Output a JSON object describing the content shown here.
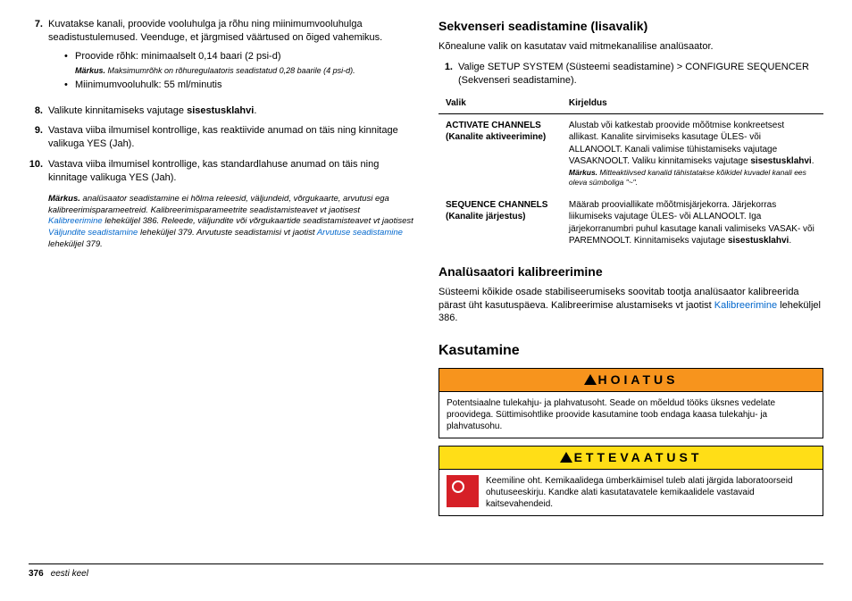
{
  "left": {
    "items": [
      {
        "n": "7.",
        "text": "Kuvatakse kanali, proovide vooluhulga ja rõhu ning miinimumvooluhulga seadistustulemused. Veenduge, et järgmised väärtused on õiged vahemikus."
      },
      {
        "n": "8.",
        "text_pre": "Valikute kinnitamiseks vajutage ",
        "bold": "sisestusklahvi",
        "text_post": "."
      },
      {
        "n": "9.",
        "text": "Vastava viiba ilmumisel kontrollige, kas reaktiivide anumad on täis ning kinnitage valikuga YES (Jah)."
      },
      {
        "n": "10.",
        "text": "Vastava viiba ilmumisel kontrollige, kas standardlahuse anumad on täis ning kinnitage valikuga YES (Jah)."
      }
    ],
    "bullet1": "Proovide rõhk: minimaalselt 0,14 baari (2 psi-d)",
    "bullet1_note_label": "Märkus.",
    "bullet1_note": " Maksimumrõhk on rõhuregulaatoris seadistatud 0,28 baarile (4 psi-d).",
    "bullet2": "Miinimumvooluhulk: 55 ml/minutis",
    "note_label": "Märkus.",
    "note_body_1": " analüsaator seadistamine ei hõlma releesid, väljundeid, võrgukaarte, arvutusi ega kalibreerimisparameetreid. Kalibreerimisparameetrite seadistamisteavet vt jaotisest ",
    "note_link1": "Kalibreerimine",
    "note_body_2": " leheküljel 386. Releede, väljundite või võrgukaartide seadistamisteavet vt jaotisest ",
    "note_link2": "Väljundite seadistamine",
    "note_body_3": " leheküljel 379. Arvutuste seadistamisi vt jaotist ",
    "note_link3": "Arvutuse seadistamine",
    "note_body_4": " leheküljel 379."
  },
  "right": {
    "h_seq": "Sekvenseri seadistamine (lisavalik)",
    "p_seq": "Kõnealune valik on kasutatav vaid mitmekanalilise analüsaator.",
    "step1_n": "1.",
    "step1": "Valige SETUP SYSTEM (Süsteemi seadistamine) > CONFIGURE SEQUENCER (Sekvenseri seadistamine).",
    "th1": "Valik",
    "th2": "Kirjeldus",
    "r1k": "ACTIVATE CHANNELS (Kanalite aktiveerimine)",
    "r1v_1": "Alustab või katkestab proovide mõõtmise konkreetsest allikast. Kanalite sirvimiseks kasutage ÜLES- või ALLANOOLT. Kanali valimise tühistamiseks vajutage VASAKNOOLT. Valiku kinnitamiseks vajutage ",
    "r1v_bold": "sisestusklahvi",
    "r1v_2": ".",
    "r1note_label": "Märkus.",
    "r1note": " Mitteaktiivsed kanalid tähistatakse kõikidel kuvadel kanali ees oleva sümboliga \"~\".",
    "r2k": "SEQUENCE CHANNELS (Kanalite järjestus)",
    "r2v_1": "Määrab prooviallikate mõõtmisjärjekorra. Järjekorras liikumiseks vajutage ÜLES- või ALLANOOLT. Iga järjekorranumbri puhul kasutage kanali valimiseks VASAK- või PAREMNOOLT. Kinnitamiseks vajutage ",
    "r2v_bold": "sisestusklahvi",
    "r2v_2": ".",
    "h_cal": "Analüsaatori kalibreerimine",
    "p_cal_1": "Süsteemi kõikide osade stabiliseerumiseks soovitab tootja analüsaator kalibreerida pärast üht kasutuspäeva. Kalibreerimise alustamiseks vt jaotist ",
    "p_cal_link": "Kalibreerimine",
    "p_cal_2": " leheküljel 386.",
    "h_use": "Kasutamine",
    "warn1_hdr": "HOIATUS",
    "warn1_body": "Potentsiaalne tulekahju- ja plahvatusoht. Seade on mõeldud tööks üksnes vedelate proovidega. Süttimisohtlike proovide kasutamine toob endaga kaasa tulekahju- ja plahvatusohu.",
    "warn2_hdr": "ETTEVAATUST",
    "warn2_body": "Keemiline oht. Kemikaalidega ümberkäimisel tuleb alati järgida laboratoorseid ohutuseeskirju. Kandke alati kasutatavatele kemikaalidele vastavaid kaitsevahendeid."
  },
  "footer": {
    "page": "376",
    "lang": "eesti keel"
  }
}
